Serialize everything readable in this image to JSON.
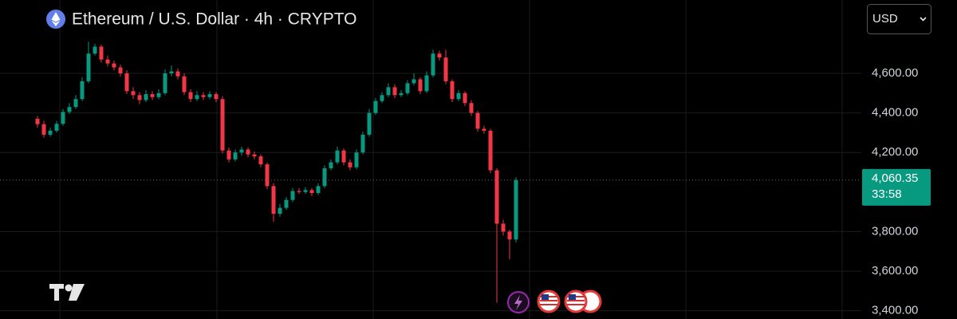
{
  "chart_data": {
    "type": "candlestick",
    "title": "Ethereum / U.S. Dollar · 4h · CRYPTO",
    "currency": "USD",
    "up_color": "#089981",
    "down_color": "#f23645",
    "ylim": [
      3358,
      4971
    ],
    "yticks": [
      {
        "value": 3400,
        "label": "3,400.00"
      },
      {
        "value": 3600,
        "label": "3,600.00"
      },
      {
        "value": 3800,
        "label": "3,800.00"
      },
      {
        "value": 4200,
        "label": "4,200.00"
      },
      {
        "value": 4400,
        "label": "4,400.00"
      },
      {
        "value": 4600,
        "label": "4,600.00"
      }
    ],
    "grid": true,
    "last_price": {
      "value": 4060.35,
      "label": "4,060.35"
    },
    "countdown": "33:58",
    "open": [
      4370,
      4343,
      4290,
      4310,
      4345,
      4405,
      4430,
      4470,
      4560,
      4700,
      4735,
      4670,
      4650,
      4630,
      4600,
      4510,
      4490,
      4465,
      4495,
      4480,
      4500,
      4600,
      4610,
      4585,
      4505,
      4470,
      4490,
      4480,
      4495,
      4470,
      4210,
      4165,
      4200,
      4215,
      4190,
      4180,
      4140,
      4030,
      3890,
      3920,
      3960,
      4005,
      4000,
      4010,
      3995,
      4030,
      4120,
      4150,
      4210,
      4150,
      4125,
      4200,
      4290,
      4400,
      4460,
      4490,
      4530,
      4490,
      4500,
      4550,
      4570,
      4510,
      4590,
      4700,
      4680,
      4560,
      4470,
      4500,
      4450,
      4400,
      4320,
      4310,
      4110,
      3840,
      3800,
      3760
    ],
    "high": [
      4385,
      4360,
      4325,
      4360,
      4420,
      4450,
      4490,
      4580,
      4760,
      4750,
      4745,
      4690,
      4665,
      4645,
      4615,
      4530,
      4505,
      4515,
      4510,
      4520,
      4620,
      4640,
      4625,
      4600,
      4520,
      4510,
      4505,
      4510,
      4505,
      4485,
      4225,
      4215,
      4230,
      4225,
      4205,
      4190,
      4150,
      4045,
      3940,
      3975,
      4020,
      4020,
      4025,
      4020,
      4045,
      4135,
      4165,
      4230,
      4220,
      4165,
      4215,
      4305,
      4420,
      4475,
      4505,
      4550,
      4545,
      4515,
      4565,
      4600,
      4580,
      4610,
      4720,
      4715,
      4720,
      4570,
      4515,
      4510,
      4465,
      4410,
      4335,
      4320,
      4120,
      3860,
      3810,
      4075
    ],
    "low": [
      4325,
      4275,
      4280,
      4300,
      4335,
      4395,
      4420,
      4460,
      4550,
      4690,
      4655,
      4635,
      4615,
      4585,
      4495,
      4470,
      4445,
      4455,
      4465,
      4470,
      4490,
      4585,
      4570,
      4490,
      4455,
      4460,
      4465,
      4470,
      4455,
      4195,
      4150,
      4155,
      4185,
      4175,
      4165,
      4125,
      4015,
      3850,
      3875,
      3910,
      3950,
      3990,
      3990,
      3980,
      3985,
      4020,
      4110,
      4140,
      4135,
      4110,
      4115,
      4190,
      4280,
      4390,
      4450,
      4480,
      4475,
      4480,
      4490,
      4540,
      4495,
      4500,
      4580,
      4665,
      4545,
      4455,
      4460,
      4435,
      4385,
      4305,
      4295,
      4095,
      3440,
      3780,
      3660,
      3745
    ],
    "close": [
      4343,
      4290,
      4310,
      4345,
      4405,
      4430,
      4470,
      4560,
      4700,
      4735,
      4670,
      4650,
      4630,
      4600,
      4510,
      4490,
      4465,
      4495,
      4480,
      4500,
      4600,
      4610,
      4585,
      4505,
      4470,
      4490,
      4480,
      4495,
      4470,
      4210,
      4165,
      4200,
      4215,
      4190,
      4180,
      4140,
      4030,
      3890,
      3920,
      3960,
      4005,
      4000,
      4010,
      3995,
      4030,
      4120,
      4150,
      4210,
      4150,
      4125,
      4200,
      4290,
      4400,
      4460,
      4490,
      4530,
      4490,
      4500,
      4550,
      4570,
      4510,
      4590,
      4700,
      4680,
      4560,
      4470,
      4500,
      4450,
      4400,
      4320,
      4310,
      4110,
      3840,
      3800,
      3760,
      4060.35
    ]
  }
}
